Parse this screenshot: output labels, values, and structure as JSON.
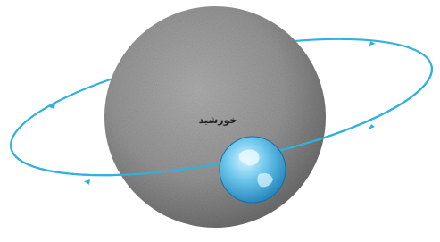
{
  "labels": {
    "sun": "خورشید"
  }
}
